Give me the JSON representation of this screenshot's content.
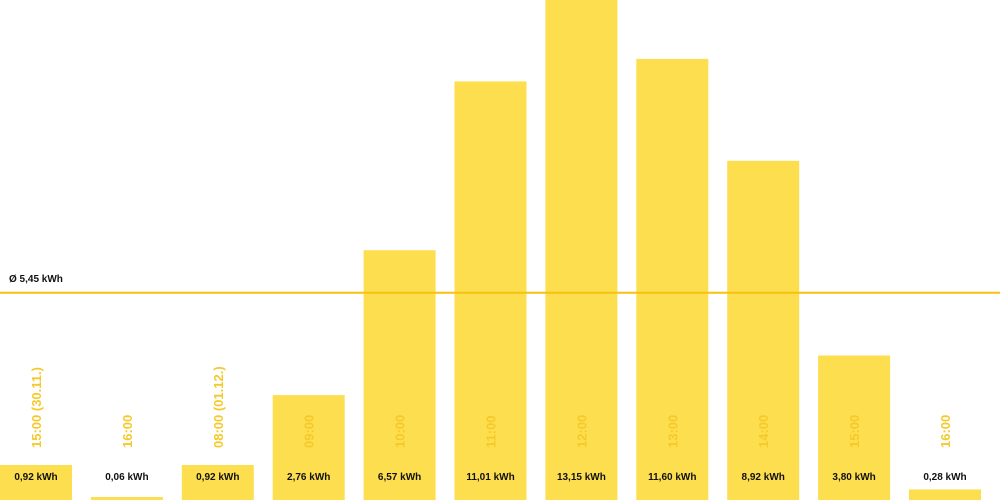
{
  "chart_data": {
    "type": "bar",
    "categories": [
      "15:00 (30.11.)",
      "16:00",
      "08:00 (01.12.)",
      "09:00",
      "10:00",
      "11:00",
      "12:00",
      "13:00",
      "14:00",
      "15:00",
      "16:00"
    ],
    "values": [
      0.92,
      0.06,
      0.92,
      2.76,
      6.57,
      11.01,
      13.15,
      11.6,
      8.92,
      3.8,
      0.28
    ],
    "value_labels": [
      "0,92 kWh",
      "0,06 kWh",
      "0,92 kWh",
      "2,76 kWh",
      "6,57 kWh",
      "11,01 kWh",
      "13,15 kWh",
      "11,60 kWh",
      "8,92 kWh",
      "3,80 kWh",
      "0,28 kWh"
    ],
    "average": 5.45,
    "average_label": "Ø 5,45 kWh",
    "ylim": [
      0,
      13.15
    ],
    "grid": false,
    "colors": {
      "bar": "#fdde4f",
      "average_line": "#f6c10f",
      "time_label": "#f6c92b",
      "value_label": "#111111"
    }
  }
}
